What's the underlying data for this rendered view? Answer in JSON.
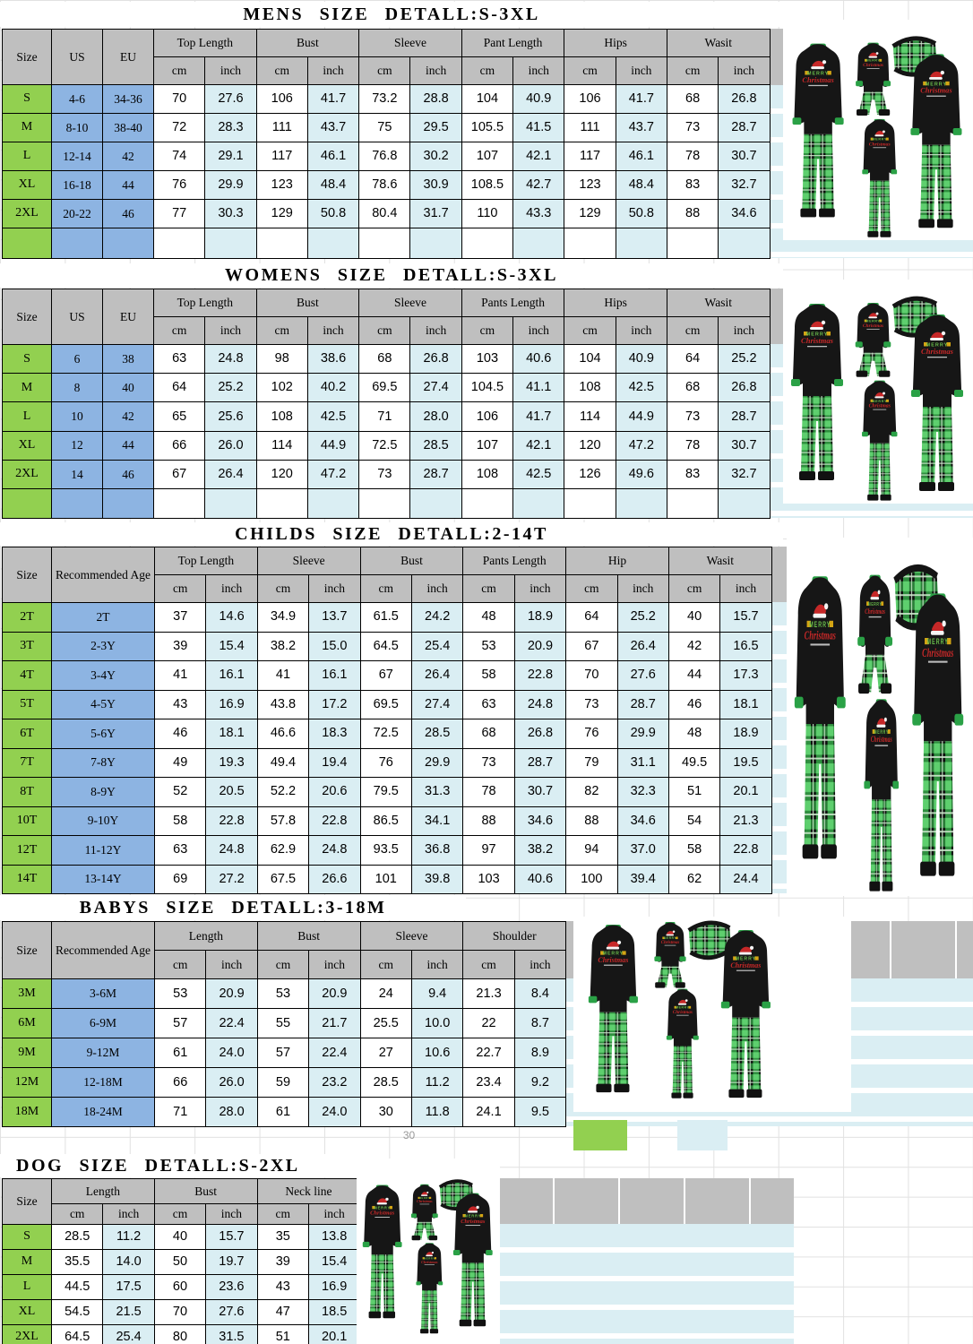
{
  "sheet": {
    "stray_value": "30"
  },
  "product_graphic": {
    "line1": "MERRY",
    "line2": "Christmas"
  },
  "colors": {
    "header_gray": "#bfbfbf",
    "size_column_green": "#92d050",
    "id_column_blue": "#8db4e2",
    "inch_column_lightblue": "#daeef3",
    "gridline_gray": "#d8d8d8",
    "pajama_top_black": "#161616",
    "collar_cuff_green": "#2aa146",
    "plaid_green": "#2f8f3f",
    "graphic_red": "#c62828",
    "graphic_green": "#6abf4b",
    "gift_gold": "#d4a514"
  },
  "tables": [
    {
      "key": "mens",
      "title": "MENS SIZE DETALL:S-3XL",
      "id_headers": [
        "Size",
        "US",
        "EU"
      ],
      "groups": [
        "Top Length",
        "Bust",
        "Sleeve",
        "Pant Length",
        "Hips",
        "Wasit"
      ],
      "sub_headers": [
        "cm",
        "inch"
      ],
      "rows": [
        {
          "id": [
            "S",
            "4-6",
            "34-36"
          ],
          "values": [
            "70",
            "27.6",
            "106",
            "41.7",
            "73.2",
            "28.8",
            "104",
            "40.9",
            "106",
            "41.7",
            "68",
            "26.8"
          ]
        },
        {
          "id": [
            "M",
            "8-10",
            "38-40"
          ],
          "values": [
            "72",
            "28.3",
            "111",
            "43.7",
            "75",
            "29.5",
            "105.5",
            "41.5",
            "111",
            "43.7",
            "73",
            "28.7"
          ]
        },
        {
          "id": [
            "L",
            "12-14",
            "42"
          ],
          "values": [
            "74",
            "29.1",
            "117",
            "46.1",
            "76.8",
            "30.2",
            "107",
            "42.1",
            "117",
            "46.1",
            "78",
            "30.7"
          ]
        },
        {
          "id": [
            "XL",
            "16-18",
            "44"
          ],
          "values": [
            "76",
            "29.9",
            "123",
            "48.4",
            "78.6",
            "30.9",
            "108.5",
            "42.7",
            "123",
            "48.4",
            "83",
            "32.7"
          ]
        },
        {
          "id": [
            "2XL",
            "20-22",
            "46"
          ],
          "values": [
            "77",
            "30.3",
            "129",
            "50.8",
            "80.4",
            "31.7",
            "110",
            "43.3",
            "129",
            "50.8",
            "88",
            "34.6"
          ]
        }
      ]
    },
    {
      "key": "womens",
      "title": "WOMENS SIZE DETALL:S-3XL",
      "id_headers": [
        "Size",
        "US",
        "EU"
      ],
      "groups": [
        "Top Length",
        "Bust",
        "Sleeve",
        "Pants Length",
        "Hips",
        "Wasit"
      ],
      "sub_headers": [
        "cm",
        "inch"
      ],
      "rows": [
        {
          "id": [
            "S",
            "6",
            "38"
          ],
          "values": [
            "63",
            "24.8",
            "98",
            "38.6",
            "68",
            "26.8",
            "103",
            "40.6",
            "104",
            "40.9",
            "64",
            "25.2"
          ]
        },
        {
          "id": [
            "M",
            "8",
            "40"
          ],
          "values": [
            "64",
            "25.2",
            "102",
            "40.2",
            "69.5",
            "27.4",
            "104.5",
            "41.1",
            "108",
            "42.5",
            "68",
            "26.8"
          ]
        },
        {
          "id": [
            "L",
            "10",
            "42"
          ],
          "values": [
            "65",
            "25.6",
            "108",
            "42.5",
            "71",
            "28.0",
            "106",
            "41.7",
            "114",
            "44.9",
            "73",
            "28.7"
          ]
        },
        {
          "id": [
            "XL",
            "12",
            "44"
          ],
          "values": [
            "66",
            "26.0",
            "114",
            "44.9",
            "72.5",
            "28.5",
            "107",
            "42.1",
            "120",
            "47.2",
            "78",
            "30.7"
          ]
        },
        {
          "id": [
            "2XL",
            "14",
            "46"
          ],
          "values": [
            "67",
            "26.4",
            "120",
            "47.2",
            "73",
            "28.7",
            "108",
            "42.5",
            "126",
            "49.6",
            "83",
            "32.7"
          ]
        }
      ]
    },
    {
      "key": "childs",
      "title": "CHILDS SIZE DETALL:2-14T",
      "id_headers": [
        "Size",
        "Recommended Age"
      ],
      "groups": [
        "Top Length",
        "Sleeve",
        "Bust",
        "Pants Length",
        "Hip",
        "Wasit"
      ],
      "sub_headers": [
        "cm",
        "inch"
      ],
      "rows": [
        {
          "id": [
            "2T",
            "2T"
          ],
          "values": [
            "37",
            "14.6",
            "34.9",
            "13.7",
            "61.5",
            "24.2",
            "48",
            "18.9",
            "64",
            "25.2",
            "40",
            "15.7"
          ]
        },
        {
          "id": [
            "3T",
            "2-3Y"
          ],
          "values": [
            "39",
            "15.4",
            "38.2",
            "15.0",
            "64.5",
            "25.4",
            "53",
            "20.9",
            "67",
            "26.4",
            "42",
            "16.5"
          ]
        },
        {
          "id": [
            "4T",
            "3-4Y"
          ],
          "values": [
            "41",
            "16.1",
            "41",
            "16.1",
            "67",
            "26.4",
            "58",
            "22.8",
            "70",
            "27.6",
            "44",
            "17.3"
          ]
        },
        {
          "id": [
            "5T",
            "4-5Y"
          ],
          "values": [
            "43",
            "16.9",
            "43.8",
            "17.2",
            "69.5",
            "27.4",
            "63",
            "24.8",
            "73",
            "28.7",
            "46",
            "18.1"
          ]
        },
        {
          "id": [
            "6T",
            "5-6Y"
          ],
          "values": [
            "46",
            "18.1",
            "46.6",
            "18.3",
            "72.5",
            "28.5",
            "68",
            "26.8",
            "76",
            "29.9",
            "48",
            "18.9"
          ]
        },
        {
          "id": [
            "7T",
            "7-8Y"
          ],
          "values": [
            "49",
            "19.3",
            "49.4",
            "19.4",
            "76",
            "29.9",
            "73",
            "28.7",
            "79",
            "31.1",
            "49.5",
            "19.5"
          ]
        },
        {
          "id": [
            "8T",
            "8-9Y"
          ],
          "values": [
            "52",
            "20.5",
            "52.2",
            "20.6",
            "79.5",
            "31.3",
            "78",
            "30.7",
            "82",
            "32.3",
            "51",
            "20.1"
          ]
        },
        {
          "id": [
            "10T",
            "9-10Y"
          ],
          "values": [
            "58",
            "22.8",
            "57.8",
            "22.8",
            "86.5",
            "34.1",
            "88",
            "34.6",
            "88",
            "34.6",
            "54",
            "21.3"
          ]
        },
        {
          "id": [
            "12T",
            "11-12Y"
          ],
          "values": [
            "63",
            "24.8",
            "62.9",
            "24.8",
            "93.5",
            "36.8",
            "97",
            "38.2",
            "94",
            "37.0",
            "58",
            "22.8"
          ]
        },
        {
          "id": [
            "14T",
            "13-14Y"
          ],
          "values": [
            "69",
            "27.2",
            "67.5",
            "26.6",
            "101",
            "39.8",
            "103",
            "40.6",
            "100",
            "39.4",
            "62",
            "24.4"
          ]
        }
      ]
    },
    {
      "key": "babys",
      "title": "BABYS SIZE DETALL:3-18M",
      "id_headers": [
        "Size",
        "Recommended Age"
      ],
      "groups": [
        "Length",
        "Bust",
        "Sleeve",
        "Shoulder"
      ],
      "sub_headers": [
        "cm",
        "inch"
      ],
      "rows": [
        {
          "id": [
            "3M",
            "3-6M"
          ],
          "values": [
            "53",
            "20.9",
            "53",
            "20.9",
            "24",
            "9.4",
            "21.3",
            "8.4"
          ]
        },
        {
          "id": [
            "6M",
            "6-9M"
          ],
          "values": [
            "57",
            "22.4",
            "55",
            "21.7",
            "25.5",
            "10.0",
            "22",
            "8.7"
          ]
        },
        {
          "id": [
            "9M",
            "9-12M"
          ],
          "values": [
            "61",
            "24.0",
            "57",
            "22.4",
            "27",
            "10.6",
            "22.7",
            "8.9"
          ]
        },
        {
          "id": [
            "12M",
            "12-18M"
          ],
          "values": [
            "66",
            "26.0",
            "59",
            "23.2",
            "28.5",
            "11.2",
            "23.4",
            "9.2"
          ]
        },
        {
          "id": [
            "18M",
            "18-24M"
          ],
          "values": [
            "71",
            "28.0",
            "61",
            "24.0",
            "30",
            "11.8",
            "24.1",
            "9.5"
          ]
        }
      ]
    },
    {
      "key": "dog",
      "title": "DOG SIZE DETALL:S-2XL",
      "id_headers": [
        "Size"
      ],
      "groups": [
        "Length",
        "Bust",
        "Neck line"
      ],
      "sub_headers": [
        "cm",
        "inch"
      ],
      "rows": [
        {
          "id": [
            "S"
          ],
          "values": [
            "28.5",
            "11.2",
            "40",
            "15.7",
            "35",
            "13.8"
          ]
        },
        {
          "id": [
            "M"
          ],
          "values": [
            "35.5",
            "14.0",
            "50",
            "19.7",
            "39",
            "15.4"
          ]
        },
        {
          "id": [
            "L"
          ],
          "values": [
            "44.5",
            "17.5",
            "60",
            "23.6",
            "43",
            "16.9"
          ]
        },
        {
          "id": [
            "XL"
          ],
          "values": [
            "54.5",
            "21.5",
            "70",
            "27.6",
            "47",
            "18.5"
          ]
        },
        {
          "id": [
            "2XL"
          ],
          "values": [
            "64.5",
            "25.4",
            "80",
            "31.5",
            "51",
            "20.1"
          ]
        }
      ]
    }
  ]
}
